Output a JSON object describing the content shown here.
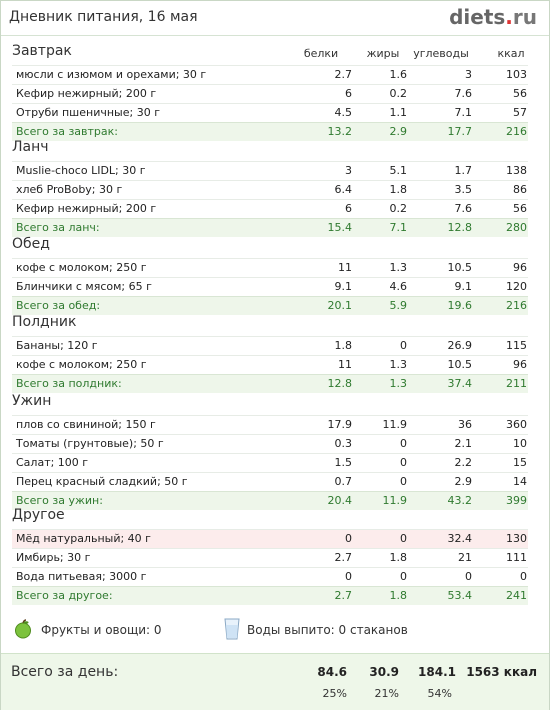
{
  "header": {
    "title": "Дневник питания, 16 мая",
    "logo": "diets",
    "logo_dot": ".",
    "logo_tld": "ru"
  },
  "columns": {
    "protein": "белки",
    "fat": "жиры",
    "carbs": "углеводы",
    "kcal": "ккал"
  },
  "meals": [
    {
      "title": "Завтрак",
      "items": [
        {
          "name": "мюсли с изюмом и орехами; 30 г",
          "b": "2.7",
          "z": "1.6",
          "u": "3",
          "k": "103"
        },
        {
          "name": "Кефир нежирный; 200 г",
          "b": "6",
          "z": "0.2",
          "u": "7.6",
          "k": "56"
        },
        {
          "name": "Отруби пшеничные; 30 г",
          "b": "4.5",
          "z": "1.1",
          "u": "7.1",
          "k": "57"
        }
      ],
      "total": {
        "name": "Всего за завтрак:",
        "b": "13.2",
        "z": "2.9",
        "u": "17.7",
        "k": "216"
      }
    },
    {
      "title": "Ланч",
      "items": [
        {
          "name": "Muslie-choco LIDL; 30 г",
          "b": "3",
          "z": "5.1",
          "u": "1.7",
          "k": "138"
        },
        {
          "name": "хлеб ProBoby; 30 г",
          "b": "6.4",
          "z": "1.8",
          "u": "3.5",
          "k": "86"
        },
        {
          "name": "Кефир нежирный; 200 г",
          "b": "6",
          "z": "0.2",
          "u": "7.6",
          "k": "56"
        }
      ],
      "total": {
        "name": "Всего за ланч:",
        "b": "15.4",
        "z": "7.1",
        "u": "12.8",
        "k": "280"
      }
    },
    {
      "title": "Обед",
      "items": [
        {
          "name": "кофе с молоком; 250 г",
          "b": "11",
          "z": "1.3",
          "u": "10.5",
          "k": "96"
        },
        {
          "name": "Блинчики с мясом; 65 г",
          "b": "9.1",
          "z": "4.6",
          "u": "9.1",
          "k": "120"
        }
      ],
      "total": {
        "name": "Всего за обед:",
        "b": "20.1",
        "z": "5.9",
        "u": "19.6",
        "k": "216"
      }
    },
    {
      "title": "Полдник",
      "items": [
        {
          "name": "Бананы; 120 г",
          "b": "1.8",
          "z": "0",
          "u": "26.9",
          "k": "115"
        },
        {
          "name": "кофе с молоком; 250 г",
          "b": "11",
          "z": "1.3",
          "u": "10.5",
          "k": "96"
        }
      ],
      "total": {
        "name": "Всего за полдник:",
        "b": "12.8",
        "z": "1.3",
        "u": "37.4",
        "k": "211"
      }
    },
    {
      "title": "Ужин",
      "items": [
        {
          "name": "плов со свининой; 150 г",
          "b": "17.9",
          "z": "11.9",
          "u": "36",
          "k": "360"
        },
        {
          "name": "Томаты (грунтовые); 50 г",
          "b": "0.3",
          "z": "0",
          "u": "2.1",
          "k": "10"
        },
        {
          "name": "Салат; 100 г",
          "b": "1.5",
          "z": "0",
          "u": "2.2",
          "k": "15"
        },
        {
          "name": "Перец красный сладкий; 50 г",
          "b": "0.7",
          "z": "0",
          "u": "2.9",
          "k": "14"
        }
      ],
      "total": {
        "name": "Всего за ужин:",
        "b": "20.4",
        "z": "11.9",
        "u": "43.2",
        "k": "399"
      }
    },
    {
      "title": "Другое",
      "items": [
        {
          "name": "Мёд натуральный; 40 г",
          "b": "0",
          "z": "0",
          "u": "32.4",
          "k": "130",
          "highlight": true
        },
        {
          "name": "Имбирь; 30 г",
          "b": "2.7",
          "z": "1.8",
          "u": "21",
          "k": "111"
        },
        {
          "name": "Вода питьевая; 3000 г",
          "b": "0",
          "z": "0",
          "u": "0",
          "k": "0"
        }
      ],
      "total": {
        "name": "Всего за другое:",
        "b": "2.7",
        "z": "1.8",
        "u": "53.4",
        "k": "241"
      }
    }
  ],
  "extras": {
    "fruits": "Фрукты и овощи: 0",
    "water": "Воды выпито: 0 стаканов",
    "fruit_icon": "apple-icon",
    "water_icon": "glass-icon"
  },
  "day": {
    "title": "Всего за день:",
    "b": "84.6",
    "z": "30.9",
    "u": "184.1",
    "k": "1563 ккал",
    "b_pct": "25%",
    "z_pct": "21%",
    "u_pct": "54%"
  },
  "colors": {
    "total_text": "#2f7a2f",
    "total_bg": "#eef6ea",
    "highlight_bg": "#fcecec"
  }
}
